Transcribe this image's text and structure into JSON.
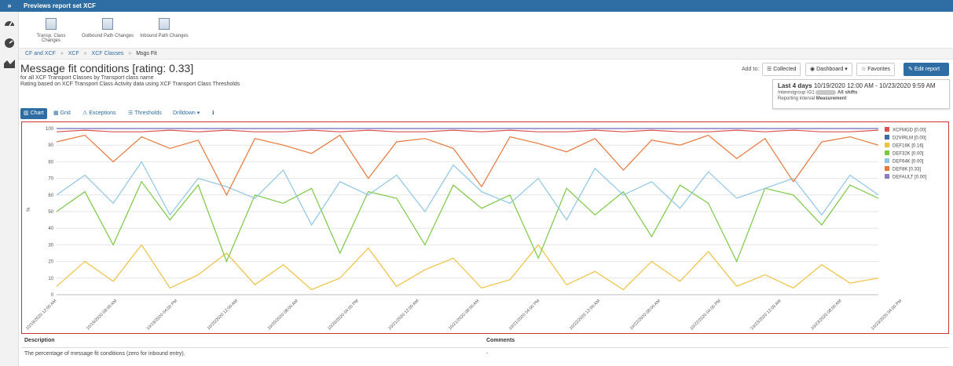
{
  "window": {
    "title": "Previews report set XCF",
    "toggle_glyph": "»"
  },
  "left_rail": {
    "icons": [
      "speedometer-icon",
      "gauge-icon",
      "area-chart-icon"
    ]
  },
  "report_nav": [
    {
      "label": "Transp. Class Changes"
    },
    {
      "label": "Outbound Path Changes"
    },
    {
      "label": "Inbound Path Changes"
    }
  ],
  "breadcrumb": {
    "items": [
      "CF and XCF",
      "XCF",
      "XCF Classes",
      "Msgs Fit"
    ],
    "separator": "»"
  },
  "header": {
    "title": "Message fit conditions [rating: 0.33]",
    "subtitle1": "for all XCF Transport Classes by Transport class name",
    "subtitle2": "Rating based on XCF Transport Class Activity data using XCF Transport Class Thresholds"
  },
  "toolbar": {
    "add_to_label": "Add to:",
    "collected_label": "Collected",
    "dashboard_label": "Dashboard",
    "favorites_label": "Favorites",
    "edit_label": "Edit report"
  },
  "range": {
    "heading": "Last 4 days",
    "dates": "10/19/2020 12:00 AM - 10/23/2020 9:59 AM",
    "line2_prefix": "Interestgroup IG1",
    "line2_suffix": "All shifts",
    "line3_label": "Reporting interval",
    "line3_value": "Measurement"
  },
  "tabs": [
    {
      "label": "Chart",
      "icon": "bar-chart-icon",
      "active": true
    },
    {
      "label": "Grid",
      "icon": "grid-icon",
      "active": false
    },
    {
      "label": "Exceptions",
      "icon": "warning-icon",
      "active": false
    },
    {
      "label": "Thresholds",
      "icon": "list-icon",
      "active": false
    },
    {
      "label": "Drilldown",
      "icon": "caret-down-icon",
      "active": false
    },
    {
      "label": "",
      "icon": "info-icon",
      "active": false
    }
  ],
  "chart_data": {
    "type": "line",
    "ylabel": "%",
    "ylim": [
      0,
      100
    ],
    "yticks": [
      0,
      10,
      20,
      30,
      40,
      50,
      60,
      70,
      80,
      90,
      100
    ],
    "xticks": [
      "10/19/2020 12:00 AM",
      "10/19/2020 08:00 AM",
      "10/19/2020 04:00 PM",
      "10/20/2020 12:00 AM",
      "10/20/2020 08:00 AM",
      "10/20/2020 04:00 PM",
      "10/21/2020 12:00 AM",
      "10/21/2020 08:00 AM",
      "10/21/2020 04:00 PM",
      "10/22/2020 12:00 AM",
      "10/22/2020 08:00 AM",
      "10/22/2020 04:00 PM",
      "10/23/2020 12:00 AM",
      "10/23/2020 08:00 AM",
      "10/23/2020 04:00 PM"
    ],
    "grid": true,
    "legend_position": "right",
    "series": [
      {
        "name": "XCFMGD [0.00]",
        "color": "#d9534f",
        "values": [
          98,
          99,
          98,
          98,
          99,
          98,
          99,
          98,
          98,
          99,
          98,
          99,
          98,
          98,
          99,
          98,
          99,
          98,
          98,
          99,
          98,
          99,
          98,
          98,
          99,
          98,
          99,
          98,
          98,
          99
        ]
      },
      {
        "name": "D2VIRLM [0.00]",
        "color": "#3a6ea5",
        "values": [
          100,
          100,
          100,
          100,
          100,
          100,
          100,
          100,
          100,
          100,
          100,
          100,
          100,
          100,
          100,
          100,
          100,
          100,
          100,
          100,
          100,
          100,
          100,
          100,
          100,
          100,
          100,
          100,
          100,
          100
        ]
      },
      {
        "name": "DEF16K [0.16]",
        "color": "#f0c040",
        "values": [
          5,
          20,
          8,
          30,
          4,
          12,
          25,
          6,
          18,
          3,
          10,
          28,
          5,
          15,
          22,
          4,
          9,
          30,
          6,
          14,
          3,
          20,
          8,
          26,
          5,
          12,
          4,
          18,
          7,
          10
        ]
      },
      {
        "name": "DEF32K [0.00]",
        "color": "#7ac943",
        "values": [
          50,
          62,
          30,
          68,
          45,
          66,
          20,
          60,
          55,
          64,
          25,
          62,
          58,
          30,
          66,
          52,
          60,
          22,
          64,
          48,
          62,
          35,
          66,
          55,
          20,
          64,
          60,
          42,
          66,
          58
        ]
      },
      {
        "name": "DEF64K [0.00]",
        "color": "#8ec6e8",
        "values": [
          60,
          72,
          55,
          80,
          48,
          70,
          65,
          58,
          75,
          42,
          68,
          60,
          72,
          50,
          78,
          62,
          55,
          70,
          45,
          76,
          60,
          68,
          52,
          74,
          58,
          64,
          70,
          48,
          72,
          60
        ]
      },
      {
        "name": "DEF8K [0.33]",
        "color": "#e8773a",
        "values": [
          92,
          96,
          80,
          95,
          88,
          93,
          60,
          94,
          90,
          85,
          96,
          70,
          92,
          94,
          88,
          65,
          95,
          91,
          86,
          94,
          75,
          93,
          90,
          96,
          82,
          94,
          68,
          92,
          95,
          90
        ]
      },
      {
        "name": "DEFAULT [0.00]",
        "color": "#8e7cc3",
        "values": [
          100,
          100,
          100,
          100,
          100,
          100,
          100,
          100,
          100,
          100,
          100,
          100,
          100,
          100,
          100,
          100,
          100,
          100,
          100,
          100,
          100,
          100,
          100,
          100,
          100,
          100,
          100,
          100,
          100,
          100
        ]
      }
    ]
  },
  "description": {
    "header_desc": "Description",
    "header_comments": "Comments",
    "desc_text": "The percentage of message fit conditions (zero for inbound entry).",
    "comments_text": "-"
  }
}
